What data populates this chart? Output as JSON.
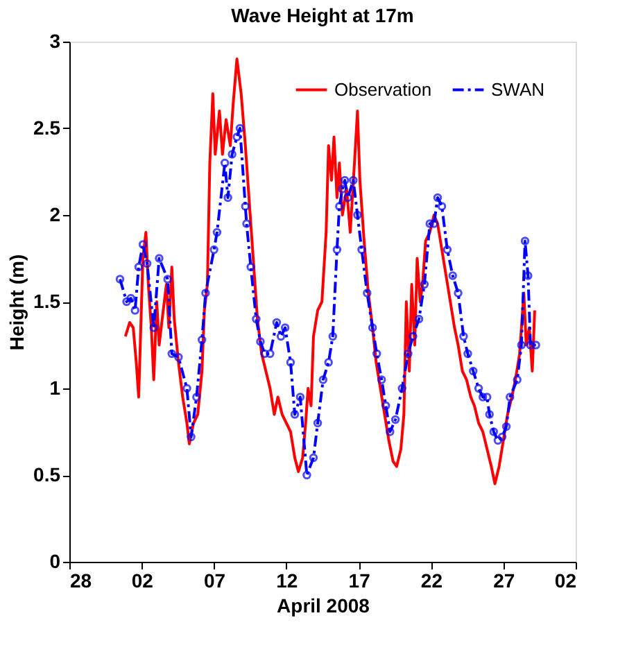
{
  "chart_data": {
    "type": "line",
    "title": "Wave Height at 17m",
    "xlabel": "April 2008",
    "ylabel": "Height (m)",
    "xlim": [
      "2008-03-28",
      "2008-05-02"
    ],
    "xticks": [
      {
        "value": "2008-03-28",
        "label": "28"
      },
      {
        "value": "2008-04-02",
        "label": "02"
      },
      {
        "value": "2008-04-07",
        "label": "07"
      },
      {
        "value": "2008-04-12",
        "label": "12"
      },
      {
        "value": "2008-04-17",
        "label": "17"
      },
      {
        "value": "2008-04-22",
        "label": "22"
      },
      {
        "value": "2008-04-27",
        "label": "27"
      },
      {
        "value": "2008-05-02",
        "label": "02"
      }
    ],
    "ylim": [
      0,
      3
    ],
    "yticks": [
      0,
      0.5,
      1,
      1.5,
      2,
      2.5,
      3
    ],
    "grid": false,
    "legend": "top right",
    "series": [
      {
        "name": "Observation",
        "color": "#ff0000",
        "line_style": "solid",
        "marker": "none",
        "x": [
          "2008-03-31T21:00",
          "2008-04-01T04:00",
          "2008-04-01T10:00",
          "2008-04-01T15:00",
          "2008-04-01T19:00",
          "2008-04-02T02:00",
          "2008-04-02T07:00",
          "2008-04-02T11:00",
          "2008-04-02T16:00",
          "2008-04-02T20:00",
          "2008-04-03T01:00",
          "2008-04-03T05:00",
          "2008-04-03T10:00",
          "2008-04-03T17:00",
          "2008-04-03T21:00",
          "2008-04-04T02:00",
          "2008-04-04T06:00",
          "2008-04-04T13:00",
          "2008-04-04T20:00",
          "2008-04-05T03:00",
          "2008-04-05T07:00",
          "2008-04-05T14:00",
          "2008-04-05T21:00",
          "2008-04-06T04:00",
          "2008-04-06T08:00",
          "2008-04-06T13:00",
          "2008-04-06T17:00",
          "2008-04-06T22:00",
          "2008-04-07T02:00",
          "2008-04-07T09:00",
          "2008-04-07T14:00",
          "2008-04-07T20:00",
          "2008-04-08T03:00",
          "2008-04-08T08:00",
          "2008-04-08T14:00",
          "2008-04-08T21:00",
          "2008-04-09T04:00",
          "2008-04-09T11:00",
          "2008-04-09T18:00",
          "2008-04-10T00:00",
          "2008-04-10T07:00",
          "2008-04-10T14:00",
          "2008-04-10T21:00",
          "2008-04-11T04:00",
          "2008-04-11T10:00",
          "2008-04-11T17:00",
          "2008-04-12T00:00",
          "2008-04-12T07:00",
          "2008-04-12T14:00",
          "2008-04-12T20:00",
          "2008-04-13T03:00",
          "2008-04-13T08:00",
          "2008-04-13T12:00",
          "2008-04-13T17:00",
          "2008-04-13T21:00",
          "2008-04-14T04:00",
          "2008-04-14T11:00",
          "2008-04-14T18:00",
          "2008-04-14T22:00",
          "2008-04-15T03:00",
          "2008-04-15T07:00",
          "2008-04-15T12:00",
          "2008-04-15T16:00",
          "2008-04-15T21:00",
          "2008-04-16T04:00",
          "2008-04-16T10:00",
          "2008-04-16T17:00",
          "2008-04-16T22:00",
          "2008-04-17T02:00",
          "2008-04-17T09:00",
          "2008-04-17T16:00",
          "2008-04-17T23:00",
          "2008-04-18T05:00",
          "2008-04-18T12:00",
          "2008-04-18T19:00",
          "2008-04-19T02:00",
          "2008-04-19T09:00",
          "2008-04-19T15:00",
          "2008-04-19T22:00",
          "2008-04-20T03:00",
          "2008-04-20T07:00",
          "2008-04-20T12:00",
          "2008-04-20T16:00",
          "2008-04-20T21:00",
          "2008-04-21T01:00",
          "2008-04-21T06:00",
          "2008-04-21T10:00",
          "2008-04-21T15:00",
          "2008-04-21T22:00",
          "2008-04-22T05:00",
          "2008-04-22T11:00",
          "2008-04-22T18:00",
          "2008-04-23T01:00",
          "2008-04-23T08:00",
          "2008-04-23T15:00",
          "2008-04-23T21:00",
          "2008-04-24T04:00",
          "2008-04-24T11:00",
          "2008-04-24T18:00",
          "2008-04-25T00:00",
          "2008-04-25T07:00",
          "2008-04-25T14:00",
          "2008-04-25T21:00",
          "2008-04-26T04:00",
          "2008-04-26T10:00",
          "2008-04-26T17:00",
          "2008-04-27T00:00",
          "2008-04-27T07:00",
          "2008-04-27T14:00",
          "2008-04-27T20:00",
          "2008-04-28T03:00",
          "2008-04-28T10:00",
          "2008-04-28T14:00",
          "2008-04-28T19:00",
          "2008-04-29T00:00",
          "2008-04-29T04:00"
        ],
        "values": [
          1.3,
          1.38,
          1.35,
          1.15,
          0.95,
          1.75,
          1.9,
          1.6,
          1.35,
          1.05,
          1.5,
          1.25,
          1.4,
          1.6,
          1.35,
          1.7,
          1.4,
          1.15,
          0.95,
          0.8,
          0.68,
          0.8,
          0.85,
          1.1,
          1.45,
          1.6,
          2.3,
          2.7,
          2.35,
          2.6,
          2.35,
          2.55,
          2.4,
          2.65,
          2.9,
          2.7,
          2.4,
          2.05,
          1.7,
          1.4,
          1.2,
          1.1,
          1.0,
          0.85,
          0.95,
          0.85,
          0.8,
          0.75,
          0.6,
          0.52,
          0.6,
          0.8,
          1.0,
          0.9,
          1.3,
          1.45,
          1.5,
          1.9,
          2.4,
          2.2,
          2.45,
          2.1,
          2.3,
          2.0,
          2.15,
          1.9,
          2.3,
          2.6,
          2.2,
          1.85,
          1.55,
          1.35,
          1.15,
          1.0,
          0.85,
          0.7,
          0.58,
          0.55,
          0.65,
          0.85,
          1.5,
          1.1,
          1.6,
          1.25,
          1.75,
          1.5,
          1.6,
          1.85,
          1.9,
          2.0,
          1.95,
          1.8,
          1.65,
          1.5,
          1.35,
          1.25,
          1.1,
          1.05,
          0.95,
          0.9,
          0.8,
          0.75,
          0.65,
          0.55,
          0.45,
          0.55,
          0.7,
          0.85,
          0.95,
          1.05,
          1.2,
          1.55,
          1.25,
          1.35,
          1.1,
          1.45
        ]
      },
      {
        "name": "SWAN",
        "color": "#0000ff",
        "line_style": "dashed",
        "marker": "circle",
        "x": [
          "2008-03-31T12:00",
          "2008-03-31T23:00",
          "2008-04-01T06:00",
          "2008-04-01T13:00",
          "2008-04-01T19:00",
          "2008-04-02T02:00",
          "2008-04-02T09:00",
          "2008-04-02T20:00",
          "2008-04-03T05:00",
          "2008-04-03T19:00",
          "2008-04-04T02:00",
          "2008-04-04T13:00",
          "2008-04-05T03:00",
          "2008-04-05T10:00",
          "2008-04-05T19:00",
          "2008-04-06T04:00",
          "2008-04-06T10:00",
          "2008-04-07T00:00",
          "2008-04-07T05:00",
          "2008-04-07T18:00",
          "2008-04-07T23:00",
          "2008-04-08T06:00",
          "2008-04-08T14:00",
          "2008-04-08T19:00",
          "2008-04-09T04:00",
          "2008-04-09T06:00",
          "2008-04-09T13:00",
          "2008-04-09T22:00",
          "2008-04-10T05:00",
          "2008-04-10T12:00",
          "2008-04-10T21:00",
          "2008-04-11T08:00",
          "2008-04-11T15:00",
          "2008-04-11T22:00",
          "2008-04-12T07:00",
          "2008-04-12T14:00",
          "2008-04-12T23:00",
          "2008-04-13T10:00",
          "2008-04-13T21:00",
          "2008-04-14T04:00",
          "2008-04-14T13:00",
          "2008-04-14T22:00",
          "2008-04-15T05:00",
          "2008-04-15T12:00",
          "2008-04-15T16:00",
          "2008-04-15T21:00",
          "2008-04-16T01:00",
          "2008-04-16T06:00",
          "2008-04-16T15:00",
          "2008-04-16T22:00",
          "2008-04-17T05:00",
          "2008-04-17T14:00",
          "2008-04-17T23:00",
          "2008-04-18T06:00",
          "2008-04-18T14:00",
          "2008-04-18T21:00",
          "2008-04-19T04:00",
          "2008-04-19T13:00",
          "2008-04-20T00:00",
          "2008-04-20T10:00",
          "2008-04-20T18:00",
          "2008-04-21T04:00",
          "2008-04-21T13:00",
          "2008-04-21T22:00",
          "2008-04-22T05:00",
          "2008-04-22T11:00",
          "2008-04-22T18:00",
          "2008-04-23T03:00",
          "2008-04-23T12:00",
          "2008-04-23T21:00",
          "2008-04-24T06:00",
          "2008-04-24T13:00",
          "2008-04-24T22:00",
          "2008-04-25T07:00",
          "2008-04-25T14:00",
          "2008-04-25T21:00",
          "2008-04-26T01:00",
          "2008-04-26T08:00",
          "2008-04-26T15:00",
          "2008-04-26T22:00",
          "2008-04-27T05:00",
          "2008-04-27T11:00",
          "2008-04-27T23:00",
          "2008-04-28T06:00",
          "2008-04-28T12:00",
          "2008-04-28T17:00",
          "2008-04-28T21:00",
          "2008-04-29T06:00"
        ],
        "values": [
          1.63,
          1.5,
          1.52,
          1.45,
          1.7,
          1.83,
          1.72,
          1.35,
          1.75,
          1.63,
          1.2,
          1.18,
          1.0,
          0.72,
          0.95,
          1.28,
          1.55,
          1.8,
          1.9,
          2.3,
          2.1,
          2.35,
          2.45,
          2.5,
          2.05,
          1.95,
          1.7,
          1.4,
          1.27,
          1.2,
          1.2,
          1.38,
          1.3,
          1.35,
          1.15,
          0.85,
          0.95,
          0.5,
          0.6,
          0.8,
          1.05,
          1.15,
          1.3,
          1.8,
          2.05,
          2.15,
          2.2,
          2.1,
          2.2,
          2.0,
          1.8,
          1.55,
          1.35,
          1.2,
          1.05,
          0.9,
          0.75,
          0.82,
          1.0,
          1.2,
          1.3,
          1.4,
          1.6,
          1.95,
          1.95,
          2.1,
          2.05,
          1.8,
          1.65,
          1.55,
          1.3,
          1.2,
          1.1,
          1.0,
          0.95,
          0.95,
          0.85,
          0.75,
          0.7,
          0.72,
          0.78,
          0.95,
          1.05,
          1.25,
          1.85,
          1.65,
          1.25,
          1.25
        ]
      }
    ]
  }
}
